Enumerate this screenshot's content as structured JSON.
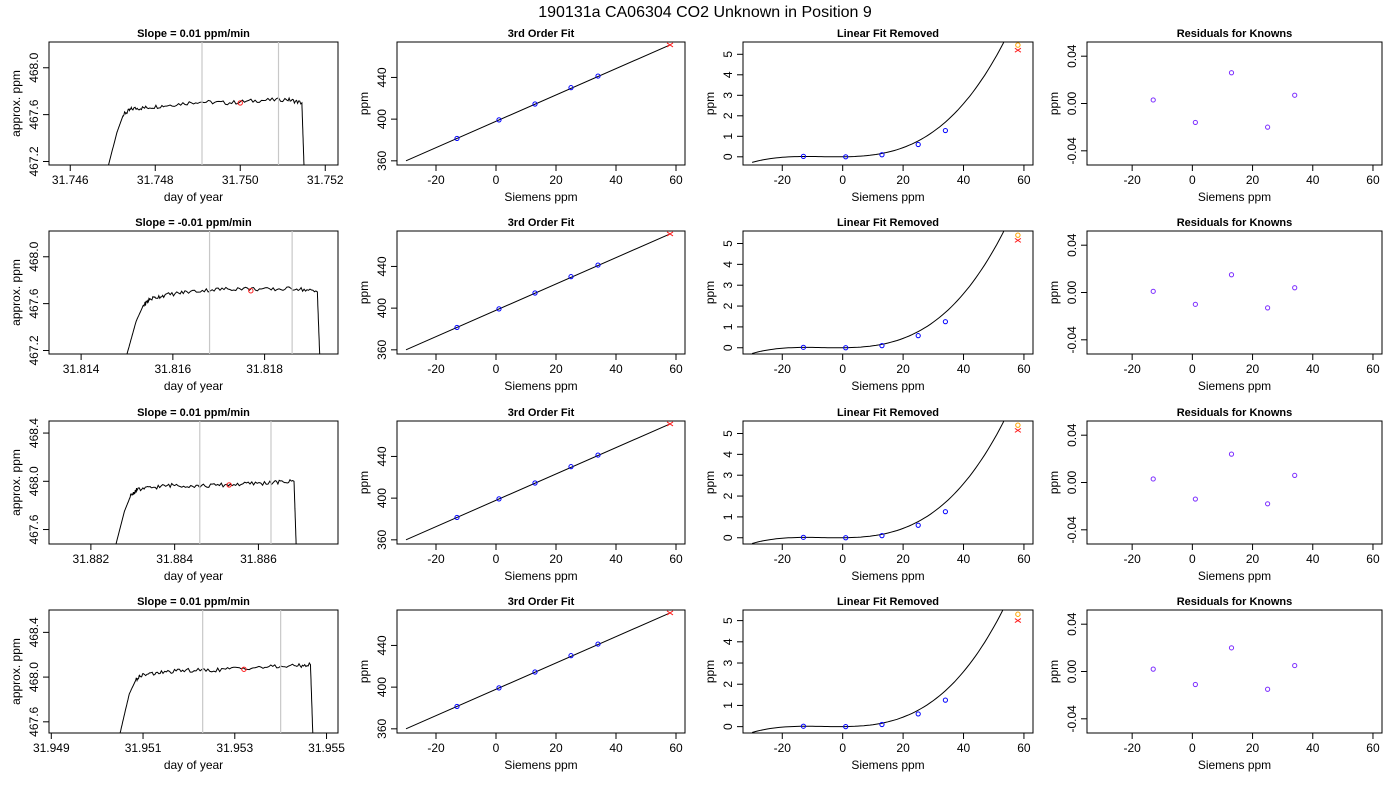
{
  "page_title": "190131a     CA06304   CO2 Unknown in Position  9",
  "colors": {
    "known_point": "#0000ff",
    "residual_point": "#7b2cff",
    "unknown_point": "#ff2020",
    "unknown_alt_point": "#ffa500",
    "window_line": "#c8c8c8",
    "trace": "#000000"
  },
  "chart_data": [
    {
      "type": "line",
      "kind": "timeseries",
      "title": "Slope =  0.01  ppm/min",
      "xlabel": "day of year",
      "ylabel": "approx. ppm",
      "xlim": [
        31.7455,
        31.7523
      ],
      "ylim": [
        467.17,
        468.22
      ],
      "xticks": [
        31.746,
        31.748,
        31.75,
        31.752
      ],
      "xtick_labels": [
        "31.746",
        "31.748",
        "31.750",
        "31.752"
      ],
      "yticks": [
        467.2,
        467.6,
        468.0
      ],
      "ytick_labels": [
        "467.2",
        "467.6",
        "468.0"
      ],
      "series": [
        {
          "x": [
            31.7469,
            31.7471,
            31.74725,
            31.74745,
            31.7478,
            31.7483,
            31.749,
            31.7497,
            31.7504,
            31.7511,
            31.75145,
            31.7515
          ],
          "y": [
            467.17,
            467.45,
            467.6,
            467.65,
            467.66,
            467.68,
            467.71,
            467.7,
            467.72,
            467.73,
            467.7,
            467.17
          ]
        }
      ],
      "window": [
        31.7491,
        31.7509
      ],
      "unknown_point": {
        "x": 31.75,
        "y": 467.7
      }
    },
    {
      "type": "line",
      "kind": "fit",
      "title": "3rd Order Fit",
      "xlabel": "Siemens ppm",
      "ylabel": "ppm",
      "xlim": [
        -33,
        63
      ],
      "ylim": [
        356,
        474
      ],
      "xticks": [
        -20,
        0,
        20,
        40,
        60
      ],
      "xtick_labels": [
        "-20",
        "0",
        "20",
        "40",
        "60"
      ],
      "yticks": [
        360,
        400,
        440
      ],
      "ytick_labels": [
        "360",
        "400",
        "440"
      ],
      "fit_line": {
        "x": [
          -30,
          58
        ],
        "y": [
          360,
          471.2
        ]
      },
      "known_points": {
        "x": [
          -13,
          1,
          13,
          25,
          34
        ],
        "y": [
          381.5,
          399.3,
          414.5,
          430.2,
          441.3
        ]
      },
      "unknown_point": {
        "x": 58,
        "y": 471.2
      }
    },
    {
      "type": "line",
      "kind": "linear_removed",
      "title": "Linear Fit Removed",
      "xlabel": "Siemens ppm",
      "ylabel": "ppm",
      "xlim": [
        -33,
        63
      ],
      "ylim": [
        -0.4,
        5.6
      ],
      "xticks": [
        -20,
        0,
        20,
        40,
        60
      ],
      "xtick_labels": [
        "-20",
        "0",
        "20",
        "40",
        "60"
      ],
      "yticks": [
        0,
        1,
        2,
        3,
        4,
        5
      ],
      "ytick_labels": [
        "0",
        "1",
        "2",
        "3",
        "4",
        "5"
      ],
      "known_points": {
        "x": [
          -13,
          1,
          13,
          25,
          34
        ],
        "y": [
          0.02,
          0.0,
          0.1,
          0.6,
          1.28
        ]
      },
      "unknown_point": {
        "x": 58,
        "y": 5.2
      },
      "unknown_alt_point": {
        "x": 58,
        "y": 5.45
      }
    },
    {
      "type": "scatter",
      "kind": "residuals",
      "title": "Residuals for Knowns",
      "xlabel": "Siemens ppm",
      "ylabel": "ppm",
      "xlim": [
        -35,
        63
      ],
      "ylim": [
        -0.052,
        0.052
      ],
      "xticks": [
        -20,
        0,
        20,
        40,
        60
      ],
      "xtick_labels": [
        "-20",
        "0",
        "20",
        "40",
        "60"
      ],
      "yticks": [
        -0.04,
        0.0,
        0.04
      ],
      "ytick_labels": [
        "-0.04",
        "0.00",
        "0.04"
      ],
      "points": {
        "x": [
          -13,
          1,
          13,
          25,
          34
        ],
        "y": [
          0.003,
          -0.016,
          0.026,
          -0.02,
          0.007
        ]
      }
    },
    {
      "type": "line",
      "kind": "timeseries",
      "title": "Slope =  -0.01  ppm/min",
      "xlabel": "day of year",
      "ylabel": "approx. ppm",
      "xlim": [
        31.8133,
        31.8196
      ],
      "ylim": [
        467.17,
        468.22
      ],
      "xticks": [
        31.814,
        31.816,
        31.818
      ],
      "xtick_labels": [
        "31.814",
        "31.816",
        "31.818"
      ],
      "yticks": [
        467.2,
        467.6,
        468.0
      ],
      "ytick_labels": [
        "467.2",
        "467.6",
        "468.0"
      ],
      "series": [
        {
          "x": [
            31.815,
            31.8152,
            31.81535,
            31.8155,
            31.8158,
            31.8163,
            31.8169,
            31.8175,
            31.8181,
            31.8187,
            31.81915,
            31.8192
          ],
          "y": [
            467.17,
            467.45,
            467.58,
            467.64,
            467.67,
            467.7,
            467.72,
            467.73,
            467.72,
            467.73,
            467.7,
            467.17
          ]
        }
      ],
      "window": [
        31.8168,
        31.8186
      ],
      "unknown_point": {
        "x": 31.8177,
        "y": 467.71
      }
    },
    {
      "type": "line",
      "kind": "fit",
      "title": "3rd Order Fit",
      "xlabel": "Siemens ppm",
      "ylabel": "ppm",
      "xlim": [
        -33,
        63
      ],
      "ylim": [
        356,
        474
      ],
      "xticks": [
        -20,
        0,
        20,
        40,
        60
      ],
      "xtick_labels": [
        "-20",
        "0",
        "20",
        "40",
        "60"
      ],
      "yticks": [
        360,
        400,
        440
      ],
      "ytick_labels": [
        "360",
        "400",
        "440"
      ],
      "fit_line": {
        "x": [
          -30,
          58
        ],
        "y": [
          360,
          471.2
        ]
      },
      "known_points": {
        "x": [
          -13,
          1,
          13,
          25,
          34
        ],
        "y": [
          381.5,
          399.3,
          414.5,
          430.2,
          441.3
        ]
      },
      "unknown_point": {
        "x": 58,
        "y": 471.2
      }
    },
    {
      "type": "line",
      "kind": "linear_removed",
      "title": "Linear Fit Removed",
      "xlabel": "Siemens ppm",
      "ylabel": "ppm",
      "xlim": [
        -33,
        63
      ],
      "ylim": [
        -0.3,
        5.6
      ],
      "xticks": [
        -20,
        0,
        20,
        40,
        60
      ],
      "xtick_labels": [
        "-20",
        "0",
        "20",
        "40",
        "60"
      ],
      "yticks": [
        0,
        1,
        2,
        3,
        4,
        5
      ],
      "ytick_labels": [
        "0",
        "1",
        "2",
        "3",
        "4",
        "5"
      ],
      "known_points": {
        "x": [
          -13,
          1,
          13,
          25,
          34
        ],
        "y": [
          0.02,
          0.0,
          0.1,
          0.58,
          1.25
        ]
      },
      "unknown_point": {
        "x": 58,
        "y": 5.15
      },
      "unknown_alt_point": {
        "x": 58,
        "y": 5.4
      }
    },
    {
      "type": "scatter",
      "kind": "residuals",
      "title": "Residuals for Knowns",
      "xlabel": "Siemens ppm",
      "ylabel": "ppm",
      "xlim": [
        -35,
        63
      ],
      "ylim": [
        -0.052,
        0.052
      ],
      "xticks": [
        -20,
        0,
        20,
        40,
        60
      ],
      "xtick_labels": [
        "-20",
        "0",
        "20",
        "40",
        "60"
      ],
      "yticks": [
        -0.04,
        0.0,
        0.04
      ],
      "ytick_labels": [
        "-0.04",
        "0.00",
        "0.04"
      ],
      "points": {
        "x": [
          -13,
          1,
          13,
          25,
          34
        ],
        "y": [
          0.001,
          -0.01,
          0.015,
          -0.013,
          0.004
        ]
      }
    },
    {
      "type": "line",
      "kind": "timeseries",
      "title": "Slope =  0.01  ppm/min",
      "xlabel": "day of year",
      "ylabel": "approx. ppm",
      "xlim": [
        31.881,
        31.8879
      ],
      "ylim": [
        467.48,
        468.5
      ],
      "xticks": [
        31.882,
        31.884,
        31.886
      ],
      "xtick_labels": [
        "31.882",
        "31.884",
        "31.886"
      ],
      "yticks": [
        467.6,
        468.0,
        468.4
      ],
      "ytick_labels": [
        "467.6",
        "468.0",
        "468.4"
      ],
      "series": [
        {
          "x": [
            31.8826,
            31.8828,
            31.88295,
            31.8831,
            31.8835,
            31.884,
            31.8846,
            31.8852,
            31.8858,
            31.8864,
            31.88685,
            31.8869
          ],
          "y": [
            467.48,
            467.75,
            467.88,
            467.93,
            467.95,
            467.97,
            467.96,
            467.97,
            467.98,
            467.99,
            468.0,
            467.48
          ]
        }
      ],
      "window": [
        31.8846,
        31.8863
      ],
      "unknown_point": {
        "x": 31.8853,
        "y": 467.97
      }
    },
    {
      "type": "line",
      "kind": "fit",
      "title": "3rd Order Fit",
      "xlabel": "Siemens ppm",
      "ylabel": "ppm",
      "xlim": [
        -33,
        63
      ],
      "ylim": [
        356,
        474
      ],
      "xticks": [
        -20,
        0,
        20,
        40,
        60
      ],
      "xtick_labels": [
        "-20",
        "0",
        "20",
        "40",
        "60"
      ],
      "yticks": [
        360,
        400,
        440
      ],
      "ytick_labels": [
        "360",
        "400",
        "440"
      ],
      "fit_line": {
        "x": [
          -30,
          58
        ],
        "y": [
          360,
          471.2
        ]
      },
      "known_points": {
        "x": [
          -13,
          1,
          13,
          25,
          34
        ],
        "y": [
          381.5,
          399.3,
          414.5,
          430.2,
          441.3
        ]
      },
      "unknown_point": {
        "x": 58,
        "y": 471.2
      }
    },
    {
      "type": "line",
      "kind": "linear_removed",
      "title": "Linear Fit Removed",
      "xlabel": "Siemens ppm",
      "ylabel": "ppm",
      "xlim": [
        -33,
        63
      ],
      "ylim": [
        -0.3,
        5.6
      ],
      "xticks": [
        -20,
        0,
        20,
        40,
        60
      ],
      "xtick_labels": [
        "-20",
        "0",
        "20",
        "40",
        "60"
      ],
      "yticks": [
        0,
        1,
        2,
        3,
        4,
        5
      ],
      "ytick_labels": [
        "0",
        "1",
        "2",
        "3",
        "4",
        "5"
      ],
      "known_points": {
        "x": [
          -13,
          1,
          13,
          25,
          34
        ],
        "y": [
          0.02,
          0.0,
          0.1,
          0.6,
          1.25
        ]
      },
      "unknown_point": {
        "x": 58,
        "y": 5.15
      },
      "unknown_alt_point": {
        "x": 58,
        "y": 5.4
      }
    },
    {
      "type": "scatter",
      "kind": "residuals",
      "title": "Residuals for Knowns",
      "xlabel": "Siemens ppm",
      "ylabel": "ppm",
      "xlim": [
        -35,
        63
      ],
      "ylim": [
        -0.052,
        0.052
      ],
      "xticks": [
        -20,
        0,
        20,
        40,
        60
      ],
      "xtick_labels": [
        "-20",
        "0",
        "20",
        "40",
        "60"
      ],
      "yticks": [
        -0.04,
        0.0,
        0.04
      ],
      "ytick_labels": [
        "-0.04",
        "0.00",
        "0.04"
      ],
      "points": {
        "x": [
          -13,
          1,
          13,
          25,
          34
        ],
        "y": [
          0.003,
          -0.014,
          0.024,
          -0.018,
          0.006
        ]
      }
    },
    {
      "type": "line",
      "kind": "timeseries",
      "title": "Slope =  0.01  ppm/min",
      "xlabel": "day of year",
      "ylabel": "approx. ppm",
      "xlim": [
        31.94895,
        31.95525
      ],
      "ylim": [
        467.5,
        468.6
      ],
      "xticks": [
        31.949,
        31.951,
        31.953,
        31.955
      ],
      "xtick_labels": [
        "31.949",
        "31.951",
        "31.953",
        "31.955"
      ],
      "yticks": [
        467.6,
        468.0,
        468.4
      ],
      "ytick_labels": [
        "467.6",
        "468.0",
        "468.4"
      ],
      "series": [
        {
          "x": [
            31.9505,
            31.9507,
            31.95085,
            31.951,
            31.9514,
            31.9519,
            31.9525,
            31.9531,
            31.9537,
            31.9543,
            31.95465,
            31.9547
          ],
          "y": [
            467.5,
            467.85,
            467.98,
            468.02,
            468.04,
            468.06,
            468.06,
            468.08,
            468.09,
            468.1,
            468.11,
            467.5
          ]
        }
      ],
      "window": [
        31.9523,
        31.954
      ],
      "unknown_point": {
        "x": 31.9532,
        "y": 468.07
      }
    },
    {
      "type": "line",
      "kind": "fit",
      "title": "3rd Order Fit",
      "xlabel": "Siemens ppm",
      "ylabel": "ppm",
      "xlim": [
        -33,
        63
      ],
      "ylim": [
        356,
        474
      ],
      "xticks": [
        -20,
        0,
        20,
        40,
        60
      ],
      "xtick_labels": [
        "-20",
        "0",
        "20",
        "40",
        "60"
      ],
      "yticks": [
        360,
        400,
        440
      ],
      "ytick_labels": [
        "360",
        "400",
        "440"
      ],
      "fit_line": {
        "x": [
          -30,
          58
        ],
        "y": [
          360,
          471.2
        ]
      },
      "known_points": {
        "x": [
          -13,
          1,
          13,
          25,
          34
        ],
        "y": [
          381.5,
          399.3,
          414.5,
          430.2,
          441.3
        ]
      },
      "unknown_point": {
        "x": 58,
        "y": 471.2
      }
    },
    {
      "type": "line",
      "kind": "linear_removed",
      "title": "Linear Fit Removed",
      "xlabel": "Siemens ppm",
      "ylabel": "ppm",
      "xlim": [
        -33,
        63
      ],
      "ylim": [
        -0.3,
        5.5
      ],
      "xticks": [
        -20,
        0,
        20,
        40,
        60
      ],
      "xtick_labels": [
        "-20",
        "0",
        "20",
        "40",
        "60"
      ],
      "yticks": [
        0,
        1,
        2,
        3,
        4,
        5
      ],
      "ytick_labels": [
        "0",
        "1",
        "2",
        "3",
        "4",
        "5"
      ],
      "known_points": {
        "x": [
          -13,
          1,
          13,
          25,
          34
        ],
        "y": [
          0.02,
          0.0,
          0.1,
          0.6,
          1.25
        ]
      },
      "unknown_point": {
        "x": 58,
        "y": 5.0
      },
      "unknown_alt_point": {
        "x": 58,
        "y": 5.3
      }
    },
    {
      "type": "scatter",
      "kind": "residuals",
      "title": "Residuals for Knowns",
      "xlabel": "Siemens ppm",
      "ylabel": "ppm",
      "xlim": [
        -35,
        63
      ],
      "ylim": [
        -0.052,
        0.052
      ],
      "xticks": [
        -20,
        0,
        20,
        40,
        60
      ],
      "xtick_labels": [
        "-20",
        "0",
        "20",
        "40",
        "60"
      ],
      "yticks": [
        -0.04,
        0.0,
        0.04
      ],
      "ytick_labels": [
        "-0.04",
        "0.00",
        "0.04"
      ],
      "points": {
        "x": [
          -13,
          1,
          13,
          25,
          34
        ],
        "y": [
          0.002,
          -0.011,
          0.02,
          -0.015,
          0.005
        ]
      }
    }
  ]
}
